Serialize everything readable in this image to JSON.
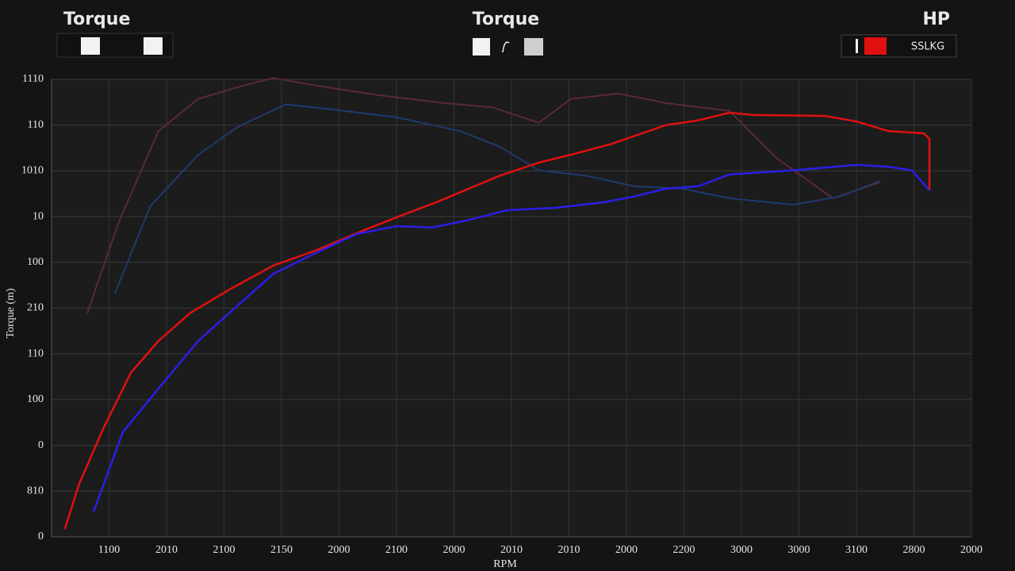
{
  "chart_data": {
    "type": "line",
    "titles": [
      "Torque",
      "Torque",
      "HP"
    ],
    "badge": "SSLKG",
    "y_label": "Torque (m)",
    "x_label": "RPM",
    "xlim": [
      0,
      16
    ],
    "ylim": [
      0,
      10
    ],
    "xticks": [
      {
        "value": 1,
        "label": "1100"
      },
      {
        "value": 2,
        "label": "2010"
      },
      {
        "value": 3,
        "label": "2100"
      },
      {
        "value": 4,
        "label": "2150"
      },
      {
        "value": 5,
        "label": "2000"
      },
      {
        "value": 6,
        "label": "2100"
      },
      {
        "value": 7,
        "label": "2000"
      },
      {
        "value": 8,
        "label": "2010"
      },
      {
        "value": 9,
        "label": "2010"
      },
      {
        "value": 10,
        "label": "2000"
      },
      {
        "value": 11,
        "label": "2200"
      },
      {
        "value": 12,
        "label": "3000"
      },
      {
        "value": 13,
        "label": "3000"
      },
      {
        "value": 14,
        "label": "3100"
      },
      {
        "value": 15,
        "label": "2800"
      },
      {
        "value": 16,
        "label": "2000"
      }
    ],
    "yticks": [
      {
        "value": 10,
        "label": "1110"
      },
      {
        "value": 9,
        "label": "110"
      },
      {
        "value": 8,
        "label": "1010"
      },
      {
        "value": 7,
        "label": "10"
      },
      {
        "value": 6,
        "label": "100"
      },
      {
        "value": 5,
        "label": "210"
      },
      {
        "value": 4,
        "label": "110"
      },
      {
        "value": 3,
        "label": "100"
      },
      {
        "value": 2,
        "label": "0"
      },
      {
        "value": 1,
        "label": "810"
      },
      {
        "value": 0,
        "label": "0"
      }
    ],
    "grid": true,
    "series": [
      {
        "color": "#5a2a32",
        "width": 2,
        "x": [
          0.62,
          1.17,
          1.86,
          2.55,
          3.24,
          3.86,
          4.62,
          5.72,
          6.83,
          7.66,
          8.48,
          9.03,
          9.86,
          10.69,
          11.79,
          12.62,
          13.59,
          14.41
        ],
        "values": [
          4.89,
          6.88,
          8.87,
          9.57,
          9.83,
          10.03,
          9.86,
          9.65,
          9.48,
          9.39,
          9.05,
          9.57,
          9.69,
          9.48,
          9.31,
          8.27,
          7.4,
          7.75
        ]
      },
      {
        "color": "#1e3a6e",
        "width": 2,
        "x": [
          1.1,
          1.72,
          2.55,
          3.24,
          4.07,
          4.9,
          6.0,
          7.1,
          7.79,
          8.48,
          9.31,
          10.14,
          10.97,
          11.79,
          12.9,
          13.72,
          14.41
        ],
        "values": [
          5.32,
          7.23,
          8.35,
          8.96,
          9.45,
          9.34,
          9.17,
          8.87,
          8.53,
          8.01,
          7.89,
          7.66,
          7.61,
          7.4,
          7.26,
          7.44,
          7.78
        ]
      },
      {
        "color": "#e01010",
        "width": 2.5,
        "x": [
          0.23,
          0.48,
          0.9,
          1.38,
          1.86,
          2.41,
          3.1,
          3.86,
          4.62,
          5.45,
          6.14,
          6.69,
          7.79,
          8.48,
          9.03,
          9.72,
          10.69,
          11.24,
          11.79,
          12.21,
          13.45,
          14.0,
          14.55,
          15.17,
          15.27,
          15.27
        ],
        "values": [
          0.17,
          1.16,
          2.37,
          3.59,
          4.28,
          4.89,
          5.41,
          5.93,
          6.27,
          6.71,
          7.05,
          7.31,
          7.89,
          8.18,
          8.35,
          8.58,
          9.0,
          9.1,
          9.27,
          9.22,
          9.2,
          9.08,
          8.87,
          8.82,
          8.7,
          7.57
        ]
      },
      {
        "color": "#2a1ee6",
        "width": 2.5,
        "x": [
          0.73,
          1.24,
          1.86,
          2.55,
          3.24,
          3.86,
          4.62,
          5.31,
          6.0,
          6.62,
          7.24,
          7.93,
          8.76,
          9.59,
          10.14,
          10.69,
          11.24,
          11.79,
          12.9,
          14.0,
          14.55,
          14.97,
          15.27
        ],
        "values": [
          0.55,
          2.29,
          3.24,
          4.28,
          5.06,
          5.75,
          6.22,
          6.62,
          6.79,
          6.76,
          6.92,
          7.14,
          7.19,
          7.31,
          7.44,
          7.61,
          7.66,
          7.92,
          8.01,
          8.13,
          8.09,
          8.01,
          7.57
        ]
      }
    ]
  }
}
